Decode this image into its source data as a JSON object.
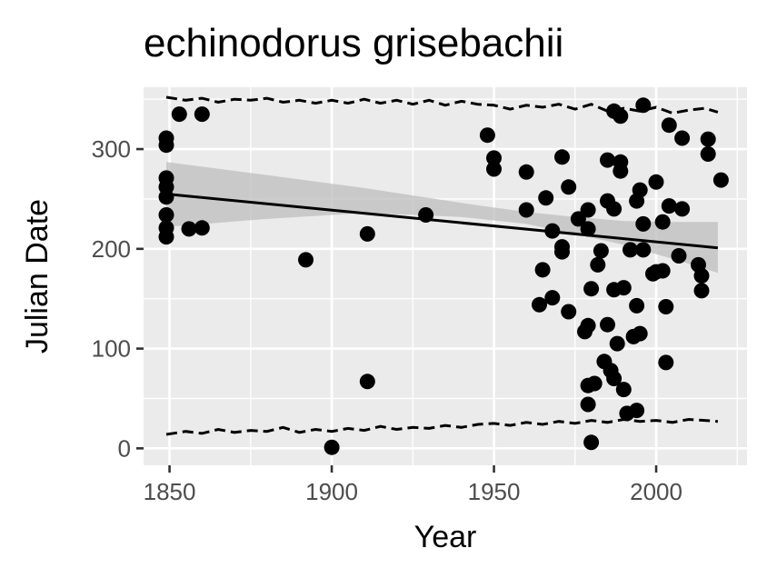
{
  "chart_data": {
    "type": "scatter",
    "title": "echinodorus grisebachii",
    "xlabel": "Year",
    "ylabel": "Julian Date",
    "xlim": [
      1842,
      2028
    ],
    "ylim": [
      -17,
      362
    ],
    "xticks": [
      1850,
      1900,
      1950,
      2000
    ],
    "yticks": [
      0,
      100,
      200,
      300
    ],
    "grid": true,
    "panel_background": "#EBEBEB",
    "grid_color": "#FFFFFF",
    "point_color": "#000000",
    "ribbon_color": "#BEBEBE",
    "points": [
      [
        1849,
        311
      ],
      [
        1849,
        304
      ],
      [
        1849,
        271
      ],
      [
        1849,
        262
      ],
      [
        1849,
        252
      ],
      [
        1849,
        234
      ],
      [
        1849,
        221
      ],
      [
        1849,
        212
      ],
      [
        1853,
        335
      ],
      [
        1856,
        220
      ],
      [
        1860,
        221
      ],
      [
        1860,
        335
      ],
      [
        1892,
        189
      ],
      [
        1900,
        1
      ],
      [
        1911,
        215
      ],
      [
        1911,
        67
      ],
      [
        1929,
        234
      ],
      [
        1948,
        314
      ],
      [
        1950,
        291
      ],
      [
        1950,
        280
      ],
      [
        1960,
        277
      ],
      [
        1960,
        239
      ],
      [
        1964,
        144
      ],
      [
        1965,
        179
      ],
      [
        1966,
        251
      ],
      [
        1968,
        151
      ],
      [
        1968,
        218
      ],
      [
        1971,
        292
      ],
      [
        1971,
        202
      ],
      [
        1971,
        197
      ],
      [
        1973,
        137
      ],
      [
        1973,
        262
      ],
      [
        1976,
        230
      ],
      [
        1978,
        117
      ],
      [
        1979,
        123
      ],
      [
        1979,
        220
      ],
      [
        1979,
        239
      ],
      [
        1979,
        44
      ],
      [
        1979,
        63
      ],
      [
        1980,
        6
      ],
      [
        1980,
        160
      ],
      [
        1981,
        65
      ],
      [
        1982,
        184
      ],
      [
        1983,
        198
      ],
      [
        1984,
        87
      ],
      [
        1985,
        248
      ],
      [
        1985,
        289
      ],
      [
        1985,
        124
      ],
      [
        1986,
        78
      ],
      [
        1987,
        70
      ],
      [
        1987,
        159
      ],
      [
        1987,
        240
      ],
      [
        1987,
        338
      ],
      [
        1988,
        105
      ],
      [
        1989,
        333
      ],
      [
        1989,
        287
      ],
      [
        1989,
        278
      ],
      [
        1990,
        161
      ],
      [
        1990,
        59
      ],
      [
        1991,
        35
      ],
      [
        1992,
        199
      ],
      [
        1993,
        112
      ],
      [
        1994,
        38
      ],
      [
        1994,
        143
      ],
      [
        1994,
        248
      ],
      [
        1995,
        115
      ],
      [
        1995,
        259
      ],
      [
        1996,
        225
      ],
      [
        1996,
        199
      ],
      [
        1996,
        344
      ],
      [
        1999,
        175
      ],
      [
        2000,
        267
      ],
      [
        2000,
        177
      ],
      [
        2002,
        178
      ],
      [
        2002,
        227
      ],
      [
        2003,
        86
      ],
      [
        2003,
        142
      ],
      [
        2004,
        243
      ],
      [
        2004,
        324
      ],
      [
        2007,
        193
      ],
      [
        2008,
        311
      ],
      [
        2008,
        240
      ],
      [
        2013,
        184
      ],
      [
        2014,
        173
      ],
      [
        2014,
        158
      ],
      [
        2016,
        310
      ],
      [
        2016,
        295
      ],
      [
        2020,
        269
      ]
    ],
    "trend_line": {
      "x": [
        1849,
        2019
      ],
      "y": [
        255,
        201
      ]
    },
    "confidence_band": {
      "x": [
        1849,
        1880,
        1910,
        1940,
        1960,
        1975,
        1990,
        2005,
        2019
      ],
      "lower": [
        222,
        230,
        236,
        232,
        225,
        215,
        204,
        190,
        176
      ],
      "upper": [
        287,
        274,
        261,
        246,
        237,
        232,
        228,
        227,
        227
      ]
    },
    "upper_dashed_line": {
      "x": [
        1849,
        1855,
        1860,
        1865,
        1870,
        1875,
        1880,
        1885,
        1890,
        1895,
        1900,
        1905,
        1910,
        1915,
        1920,
        1925,
        1930,
        1935,
        1940,
        1945,
        1950,
        1955,
        1960,
        1965,
        1970,
        1975,
        1980,
        1985,
        1990,
        1995,
        2000,
        2005,
        2010,
        2015,
        2019
      ],
      "y": [
        352,
        349,
        351,
        347,
        350,
        349,
        351,
        347,
        349,
        346,
        349,
        346,
        350,
        346,
        349,
        345,
        349,
        344,
        348,
        345,
        344,
        340,
        344,
        342,
        345,
        340,
        345,
        338,
        341,
        338,
        342,
        336,
        339,
        341,
        337
      ]
    },
    "lower_dashed_line": {
      "x": [
        1849,
        1855,
        1860,
        1865,
        1870,
        1875,
        1880,
        1885,
        1890,
        1895,
        1900,
        1905,
        1910,
        1915,
        1920,
        1925,
        1930,
        1935,
        1940,
        1945,
        1950,
        1955,
        1960,
        1965,
        1970,
        1975,
        1980,
        1985,
        1990,
        1995,
        2000,
        2005,
        2010,
        2015,
        2019
      ],
      "y": [
        14,
        17,
        15,
        19,
        16,
        18,
        17,
        21,
        16,
        19,
        17,
        20,
        18,
        22,
        19,
        21,
        20,
        23,
        21,
        24,
        25,
        23,
        26,
        24,
        27,
        25,
        28,
        26,
        29,
        27,
        28,
        26,
        29,
        28,
        27
      ]
    }
  }
}
